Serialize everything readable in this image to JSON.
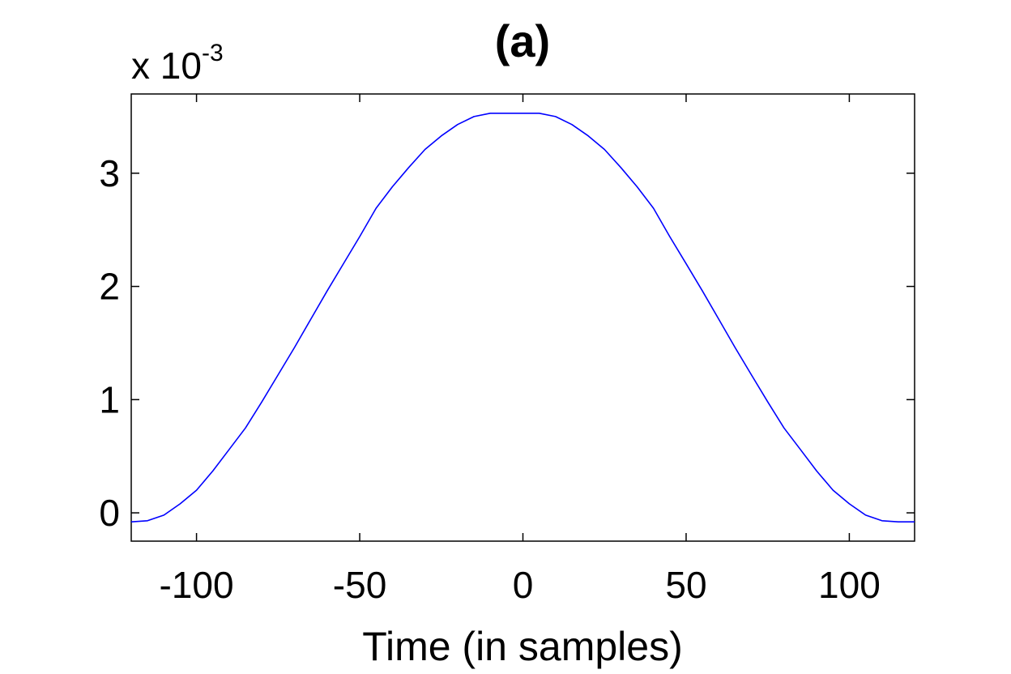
{
  "chart_data": {
    "type": "line",
    "title": "(a)",
    "xlabel": "Time (in samples)",
    "ylabel": "",
    "y_multiplier": {
      "prefix": "x 10",
      "exponent": "-3"
    },
    "xlim": [
      -120,
      120
    ],
    "ylim": [
      -0.25,
      3.7
    ],
    "x_ticks": [
      -100,
      -50,
      0,
      50,
      100
    ],
    "x_tick_labels": [
      "-100",
      "-50",
      "0",
      "50",
      "100"
    ],
    "y_ticks": [
      0,
      1,
      2,
      3
    ],
    "y_tick_labels": [
      "0",
      "1",
      "2",
      "3"
    ],
    "grid": false,
    "series": [
      {
        "color": "#0000ff",
        "x": [
          -120,
          -115,
          -110,
          -105,
          -100,
          -95,
          -90,
          -85,
          -80,
          -75,
          -70,
          -65,
          -60,
          -55,
          -50,
          -45,
          -40,
          -35,
          -30,
          -25,
          -20,
          -15,
          -10,
          -5,
          0,
          5,
          10,
          15,
          20,
          25,
          30,
          35,
          40,
          45,
          50,
          55,
          60,
          65,
          70,
          75,
          80,
          85,
          90,
          95,
          100,
          105,
          110,
          115,
          120
        ],
        "y": [
          -0.08,
          -0.07,
          -0.02,
          0.08,
          0.2,
          0.37,
          0.56,
          0.75,
          0.98,
          1.22,
          1.46,
          1.71,
          1.96,
          2.2,
          2.44,
          2.69,
          2.88,
          3.05,
          3.21,
          3.33,
          3.43,
          3.5,
          3.53,
          3.53,
          3.53,
          3.53,
          3.5,
          3.43,
          3.33,
          3.21,
          3.05,
          2.88,
          2.69,
          2.44,
          2.2,
          1.96,
          1.71,
          1.46,
          1.22,
          0.98,
          0.75,
          0.56,
          0.37,
          0.2,
          0.08,
          -0.02,
          -0.07,
          -0.08,
          -0.08
        ]
      }
    ]
  }
}
